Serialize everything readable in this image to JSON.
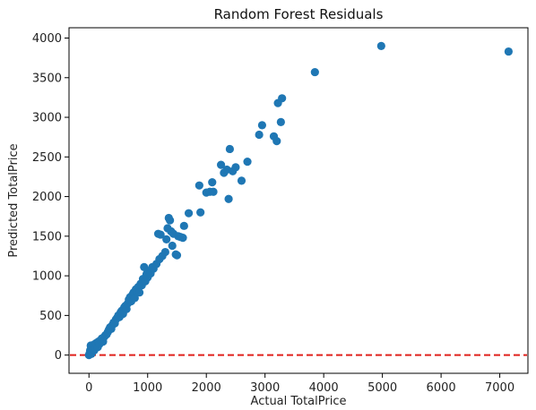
{
  "chart_data": {
    "type": "scatter",
    "title": "Random Forest Residuals",
    "xlabel": "Actual TotalPrice",
    "ylabel": "Predicted TotalPrice",
    "xlim": [
      -340,
      7480
    ],
    "ylim": [
      -230,
      4130
    ],
    "xticks": [
      0,
      1000,
      2000,
      3000,
      4000,
      5000,
      6000,
      7000
    ],
    "yticks": [
      0,
      500,
      1000,
      1500,
      2000,
      2500,
      3000,
      3500,
      4000
    ],
    "grid": false,
    "legend": "none",
    "reference_line": {
      "y": 0,
      "style": "dashed",
      "color": "#e0201b"
    },
    "marker_color": "#1f77b4",
    "points": [
      [
        0,
        0
      ],
      [
        10,
        20
      ],
      [
        20,
        60
      ],
      [
        30,
        120
      ],
      [
        40,
        15
      ],
      [
        50,
        100
      ],
      [
        60,
        40
      ],
      [
        70,
        80
      ],
      [
        80,
        130
      ],
      [
        90,
        60
      ],
      [
        100,
        110
      ],
      [
        110,
        90
      ],
      [
        120,
        150
      ],
      [
        130,
        120
      ],
      [
        150,
        100
      ],
      [
        160,
        170
      ],
      [
        180,
        140
      ],
      [
        200,
        190
      ],
      [
        220,
        210
      ],
      [
        240,
        170
      ],
      [
        260,
        230
      ],
      [
        280,
        250
      ],
      [
        300,
        260
      ],
      [
        320,
        290
      ],
      [
        340,
        320
      ],
      [
        360,
        350
      ],
      [
        380,
        330
      ],
      [
        400,
        380
      ],
      [
        420,
        410
      ],
      [
        440,
        400
      ],
      [
        460,
        450
      ],
      [
        480,
        470
      ],
      [
        500,
        500
      ],
      [
        520,
        480
      ],
      [
        540,
        540
      ],
      [
        560,
        560
      ],
      [
        580,
        520
      ],
      [
        600,
        600
      ],
      [
        620,
        620
      ],
      [
        640,
        580
      ],
      [
        660,
        650
      ],
      [
        680,
        700
      ],
      [
        700,
        730
      ],
      [
        720,
        680
      ],
      [
        740,
        760
      ],
      [
        760,
        790
      ],
      [
        780,
        720
      ],
      [
        800,
        830
      ],
      [
        820,
        800
      ],
      [
        840,
        860
      ],
      [
        860,
        790
      ],
      [
        880,
        900
      ],
      [
        900,
        880
      ],
      [
        920,
        960
      ],
      [
        940,
        1110
      ],
      [
        960,
        930
      ],
      [
        980,
        1020
      ],
      [
        1000,
        980
      ],
      [
        1020,
        1060
      ],
      [
        1050,
        1030
      ],
      [
        1080,
        1110
      ],
      [
        1100,
        1090
      ],
      [
        1150,
        1150
      ],
      [
        1200,
        1210
      ],
      [
        1180,
        1530
      ],
      [
        1220,
        1520
      ],
      [
        1250,
        1250
      ],
      [
        1300,
        1300
      ],
      [
        1320,
        1460
      ],
      [
        1340,
        1600
      ],
      [
        1360,
        1730
      ],
      [
        1380,
        1700
      ],
      [
        1400,
        1560
      ],
      [
        1420,
        1380
      ],
      [
        1440,
        1530
      ],
      [
        1480,
        1270
      ],
      [
        1500,
        1260
      ],
      [
        1520,
        1500
      ],
      [
        1560,
        1490
      ],
      [
        1600,
        1480
      ],
      [
        1620,
        1630
      ],
      [
        1700,
        1790
      ],
      [
        1880,
        2140
      ],
      [
        1900,
        1800
      ],
      [
        2000,
        2050
      ],
      [
        2060,
        2060
      ],
      [
        2100,
        2180
      ],
      [
        2120,
        2060
      ],
      [
        2250,
        2400
      ],
      [
        2300,
        2300
      ],
      [
        2350,
        2340
      ],
      [
        2380,
        1970
      ],
      [
        2400,
        2600
      ],
      [
        2450,
        2320
      ],
      [
        2500,
        2370
      ],
      [
        2600,
        2200
      ],
      [
        2700,
        2440
      ],
      [
        2900,
        2780
      ],
      [
        2950,
        2900
      ],
      [
        3150,
        2760
      ],
      [
        3200,
        2700
      ],
      [
        3220,
        3180
      ],
      [
        3270,
        2940
      ],
      [
        3290,
        3240
      ],
      [
        3850,
        3570
      ],
      [
        4980,
        3900
      ],
      [
        7150,
        3830
      ]
    ]
  }
}
